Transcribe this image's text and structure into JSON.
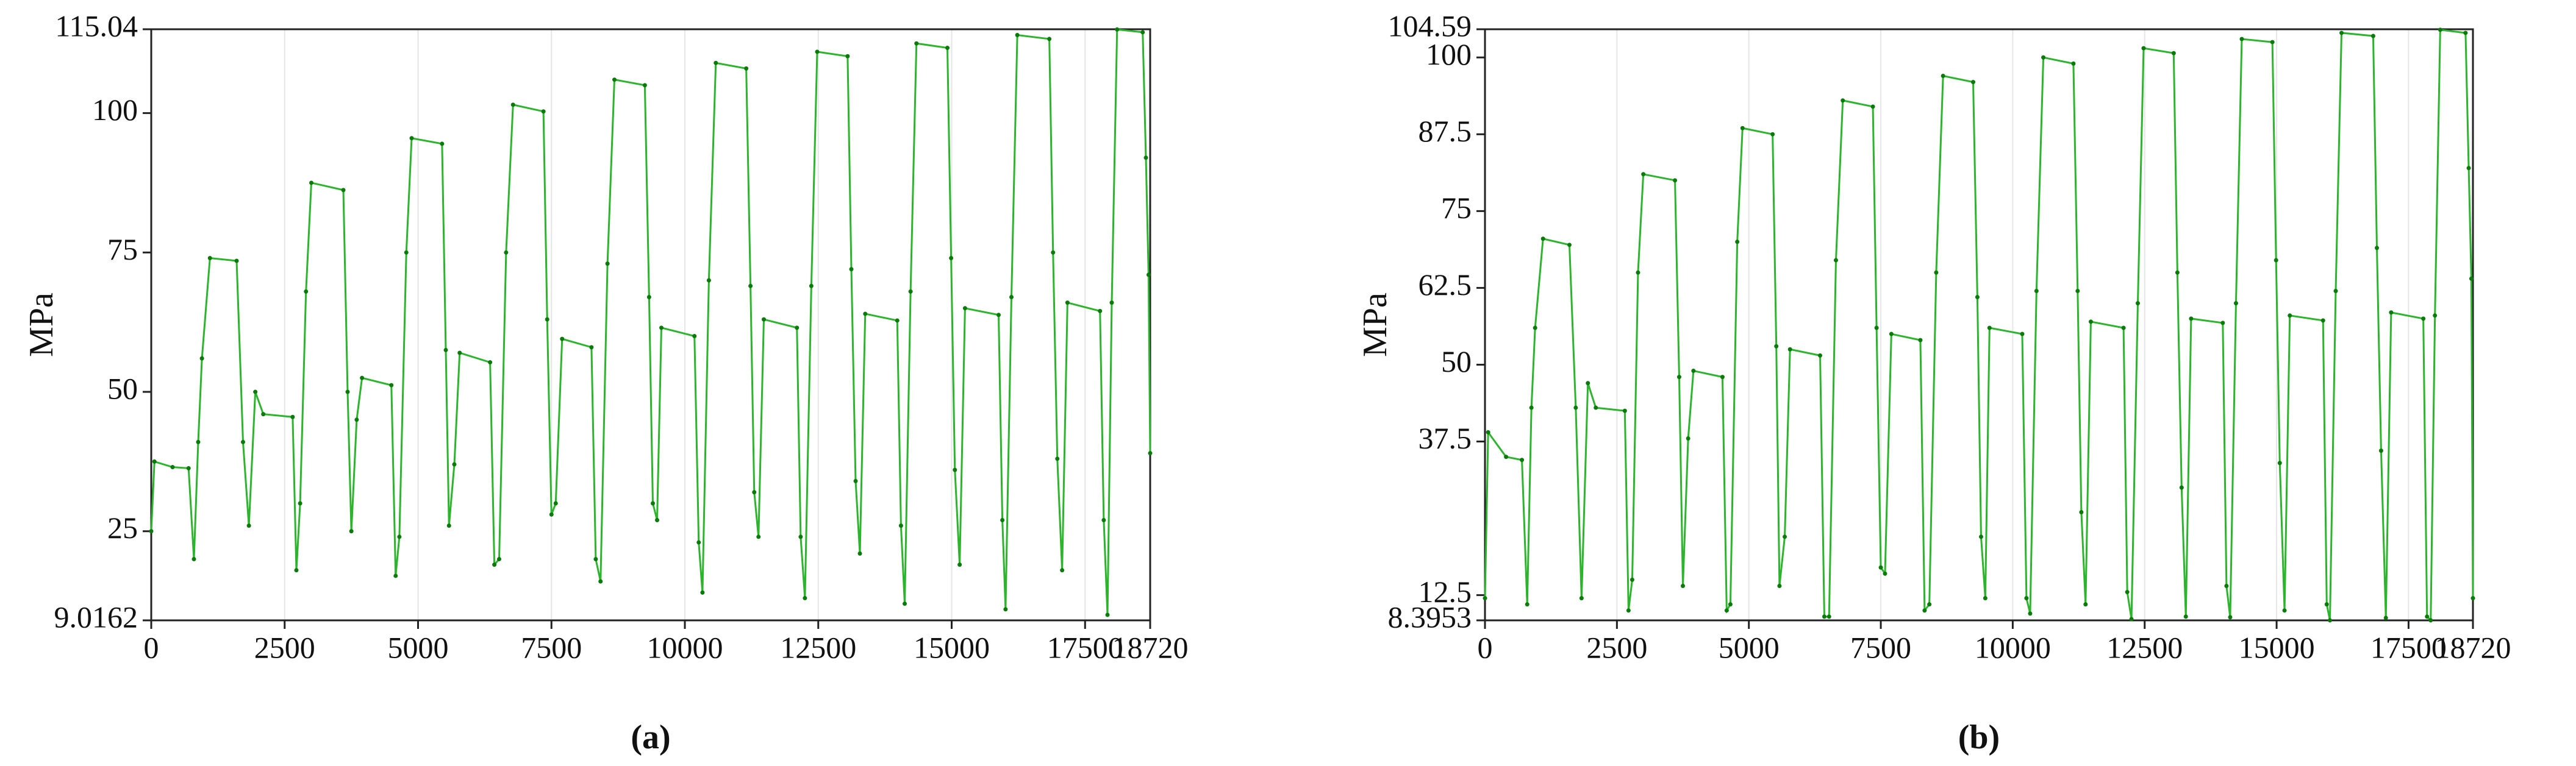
{
  "chart_data": [
    {
      "type": "line",
      "caption": "(a)",
      "ylabel": "MPa",
      "color": "#2cb52c",
      "marker_color": "#0a7a0a",
      "grid": true,
      "xlim": [
        0,
        18720
      ],
      "xticks": [
        0,
        2500,
        5000,
        7500,
        10000,
        12500,
        15000,
        17500,
        18720
      ],
      "ylim": [
        9.0162,
        115.04
      ],
      "yticks": [
        9.0162,
        25,
        50,
        75,
        100,
        115.04
      ],
      "x": [
        0,
        60,
        400,
        700,
        800,
        880,
        950,
        1100,
        1600,
        1720,
        1830,
        1950,
        2100,
        2650,
        2720,
        2790,
        2900,
        3000,
        3600,
        3680,
        3750,
        3850,
        3950,
        4500,
        4580,
        4650,
        4780,
        4880,
        5450,
        5520,
        5580,
        5680,
        5780,
        6350,
        6430,
        6520,
        6650,
        6780,
        7350,
        7420,
        7500,
        7580,
        7700,
        8250,
        8330,
        8420,
        8550,
        8680,
        9250,
        9330,
        9400,
        9480,
        9560,
        10180,
        10260,
        10330,
        10450,
        10580,
        11150,
        11230,
        11300,
        11380,
        11480,
        12100,
        12170,
        12250,
        12370,
        12480,
        13050,
        13120,
        13200,
        13280,
        13380,
        13980,
        14050,
        14120,
        14230,
        14340,
        14920,
        14990,
        15060,
        15150,
        15250,
        15880,
        15950,
        16010,
        16120,
        16230,
        16830,
        16900,
        16980,
        17070,
        17170,
        17780,
        17850,
        17920,
        18000,
        18100,
        18580,
        18640,
        18690,
        18720
      ],
      "values": [
        25,
        37.5,
        36.5,
        36.3,
        20,
        41,
        56,
        74,
        73.5,
        41,
        26,
        50,
        46,
        45.5,
        18,
        30,
        68,
        87.5,
        86.2,
        50,
        25,
        45,
        52.5,
        51.2,
        17,
        24,
        75,
        95.5,
        94.5,
        57.5,
        26,
        37,
        57,
        55.3,
        19,
        20,
        75,
        101.5,
        100.3,
        63,
        28,
        30,
        59.5,
        58,
        20,
        16,
        73,
        106,
        105,
        67,
        30,
        27,
        61.5,
        60,
        23,
        14,
        70,
        109,
        108,
        69,
        32,
        24,
        63,
        61.5,
        24,
        13,
        69,
        111,
        110.2,
        72,
        34,
        21,
        64,
        62.8,
        26,
        12,
        68,
        112.5,
        111.7,
        74,
        36,
        19,
        65,
        63.8,
        27,
        11,
        67,
        114,
        113.3,
        75,
        38,
        18,
        66,
        64.5,
        27,
        10,
        66,
        115,
        114.5,
        92,
        71,
        39
      ]
    },
    {
      "type": "line",
      "caption": "(b)",
      "ylabel": "MPa",
      "color": "#2cb52c",
      "marker_color": "#0a7a0a",
      "grid": true,
      "xlim": [
        0,
        18720
      ],
      "xticks": [
        0,
        2500,
        5000,
        7500,
        10000,
        12500,
        15000,
        17500,
        18720
      ],
      "ylim": [
        8.3953,
        104.59
      ],
      "yticks": [
        8.3953,
        12.5,
        37.5,
        50,
        62.5,
        75,
        87.5,
        100,
        104.59
      ],
      "x": [
        0,
        60,
        400,
        700,
        800,
        880,
        950,
        1100,
        1600,
        1720,
        1830,
        1950,
        2100,
        2650,
        2720,
        2790,
        2900,
        3000,
        3600,
        3680,
        3750,
        3850,
        3950,
        4500,
        4580,
        4650,
        4780,
        4880,
        5450,
        5520,
        5580,
        5680,
        5780,
        6350,
        6430,
        6520,
        6650,
        6780,
        7350,
        7420,
        7500,
        7580,
        7700,
        8250,
        8330,
        8420,
        8550,
        8680,
        9250,
        9330,
        9400,
        9480,
        9560,
        10180,
        10260,
        10330,
        10450,
        10580,
        11150,
        11230,
        11300,
        11380,
        11480,
        12100,
        12170,
        12250,
        12370,
        12480,
        13050,
        13120,
        13200,
        13280,
        13380,
        13980,
        14050,
        14120,
        14230,
        14340,
        14920,
        14990,
        15060,
        15150,
        15250,
        15880,
        15950,
        16010,
        16120,
        16230,
        16830,
        16900,
        16980,
        17070,
        17170,
        17780,
        17850,
        17920,
        18000,
        18100,
        18580,
        18640,
        18690,
        18720
      ],
      "values": [
        12,
        39,
        35,
        34.5,
        11,
        43,
        56,
        70.5,
        69.5,
        43,
        12,
        47,
        43,
        42.5,
        10,
        15,
        65,
        81,
        80,
        48,
        14,
        38,
        49,
        48,
        10,
        11,
        70,
        88.5,
        87.5,
        53,
        14,
        22,
        52.5,
        51.5,
        9,
        9,
        67,
        93,
        92,
        56,
        17,
        16,
        55,
        54,
        10,
        11,
        65,
        97,
        96,
        61,
        22,
        12,
        56,
        55,
        12,
        9.5,
        62,
        100,
        99,
        62,
        26,
        11,
        57,
        56,
        13,
        8.6,
        60,
        101.5,
        100.7,
        65,
        30,
        9,
        57.5,
        56.8,
        14,
        8.9,
        60,
        103,
        102.5,
        67,
        34,
        10,
        58,
        57.2,
        11,
        8.4,
        62,
        104,
        103.5,
        69,
        36,
        8.8,
        58.5,
        57.5,
        9,
        8.4,
        58,
        104.5,
        104,
        82,
        64,
        12
      ]
    }
  ]
}
